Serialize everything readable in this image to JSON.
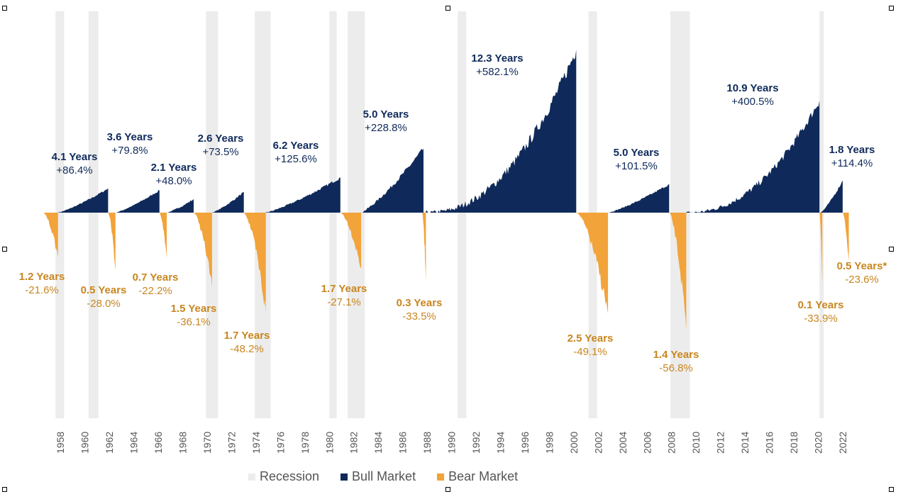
{
  "colors": {
    "bull": "#0f2a5a",
    "bear": "#f2a33a",
    "recession": "#ececec",
    "bear_text": "#c8861f",
    "bull_text": "#0f2a5a",
    "axis_text": "#555555"
  },
  "legend": [
    {
      "label": "Recession",
      "color": "#ececec"
    },
    {
      "label": "Bull Market",
      "color": "#0f2a5a"
    },
    {
      "label": "Bear Market",
      "color": "#f2a33a"
    }
  ],
  "chart_data": {
    "type": "area",
    "title": "",
    "x_range": [
      1956.9,
      2022.9
    ],
    "y_range_pct": [
      -100,
      600
    ],
    "x_ticks": [
      "1958",
      "1960",
      "1962",
      "1964",
      "1966",
      "1968",
      "1970",
      "1972",
      "1974",
      "1976",
      "1978",
      "1980",
      "1982",
      "1984",
      "1986",
      "1988",
      "1990",
      "1992",
      "1994",
      "1996",
      "1998",
      "2000",
      "2002",
      "2004",
      "2006",
      "2008",
      "2010",
      "2012",
      "2014",
      "2016",
      "2018",
      "2020",
      "2022"
    ],
    "recessions": [
      [
        1957.6,
        1958.3
      ],
      [
        1960.3,
        1961.1
      ],
      [
        1969.9,
        1970.9
      ],
      [
        1973.9,
        1975.2
      ],
      [
        1980.0,
        1980.6
      ],
      [
        1981.5,
        1982.9
      ],
      [
        1990.5,
        1991.2
      ],
      [
        2001.2,
        2001.9
      ],
      [
        2007.9,
        2009.5
      ],
      [
        2020.1,
        2020.3
      ]
    ],
    "bull_markets": [
      {
        "start": 1957.8,
        "end": 1961.9,
        "years": "4.1 Years",
        "return": "+86.4%",
        "pct": 86.4
      },
      {
        "start": 1962.5,
        "end": 1966.1,
        "years": "3.6 Years",
        "return": "+79.8%",
        "pct": 79.8
      },
      {
        "start": 1966.7,
        "end": 1968.9,
        "years": "2.1 Years",
        "return": "+48.0%",
        "pct": 48.0
      },
      {
        "start": 1970.4,
        "end": 1973.0,
        "years": "2.6 Years",
        "return": "+73.5%",
        "pct": 73.5
      },
      {
        "start": 1974.8,
        "end": 1980.9,
        "years": "6.2 Years",
        "return": "+125.6%",
        "pct": 125.6
      },
      {
        "start": 1982.6,
        "end": 1987.7,
        "years": "5.0 Years",
        "return": "+228.8%",
        "pct": 228.8
      },
      {
        "start": 1987.9,
        "end": 2000.2,
        "years": "12.3 Years",
        "return": "+582.1%",
        "pct": 582.1
      },
      {
        "start": 2002.8,
        "end": 2007.8,
        "years": "5.0 Years",
        "return": "+101.5%",
        "pct": 101.5
      },
      {
        "start": 2009.2,
        "end": 2020.1,
        "years": "10.9 Years",
        "return": "+400.5%",
        "pct": 400.5
      },
      {
        "start": 2020.2,
        "end": 2022.0,
        "years": "1.8 Years",
        "return": "+114.4%",
        "pct": 114.4
      }
    ],
    "bear_markets": [
      {
        "start": 1956.6,
        "end": 1957.8,
        "years": "1.2 Years",
        "return": "-21.6%",
        "pct": -21.6
      },
      {
        "start": 1961.9,
        "end": 1962.5,
        "years": "0.5 Years",
        "return": "-28.0%",
        "pct": -28.0
      },
      {
        "start": 1966.1,
        "end": 1966.7,
        "years": "0.7 Years",
        "return": "-22.2%",
        "pct": -22.2
      },
      {
        "start": 1968.9,
        "end": 1970.4,
        "years": "1.5 Years",
        "return": "-36.1%",
        "pct": -36.1
      },
      {
        "start": 1973.0,
        "end": 1974.8,
        "years": "1.7 Years",
        "return": "-48.2%",
        "pct": -48.2
      },
      {
        "start": 1980.9,
        "end": 1982.6,
        "years": "1.7 Years",
        "return": "-27.1%",
        "pct": -27.1
      },
      {
        "start": 1987.6,
        "end": 1987.9,
        "years": "0.3 Years",
        "return": "-33.5%",
        "pct": -33.5
      },
      {
        "start": 2000.2,
        "end": 2002.8,
        "years": "2.5 Years",
        "return": "-49.1%",
        "pct": -49.1
      },
      {
        "start": 2007.8,
        "end": 2009.2,
        "years": "1.4 Years",
        "return": "-56.8%",
        "pct": -56.8
      },
      {
        "start": 2020.1,
        "end": 2020.2,
        "years": "0.1 Years",
        "return": "-33.9%",
        "pct": -33.9
      },
      {
        "start": 2022.0,
        "end": 2022.5,
        "years": "0.5 Years*",
        "return": "-23.6%",
        "pct": -23.6
      }
    ],
    "xlabel": "",
    "ylabel": ""
  }
}
